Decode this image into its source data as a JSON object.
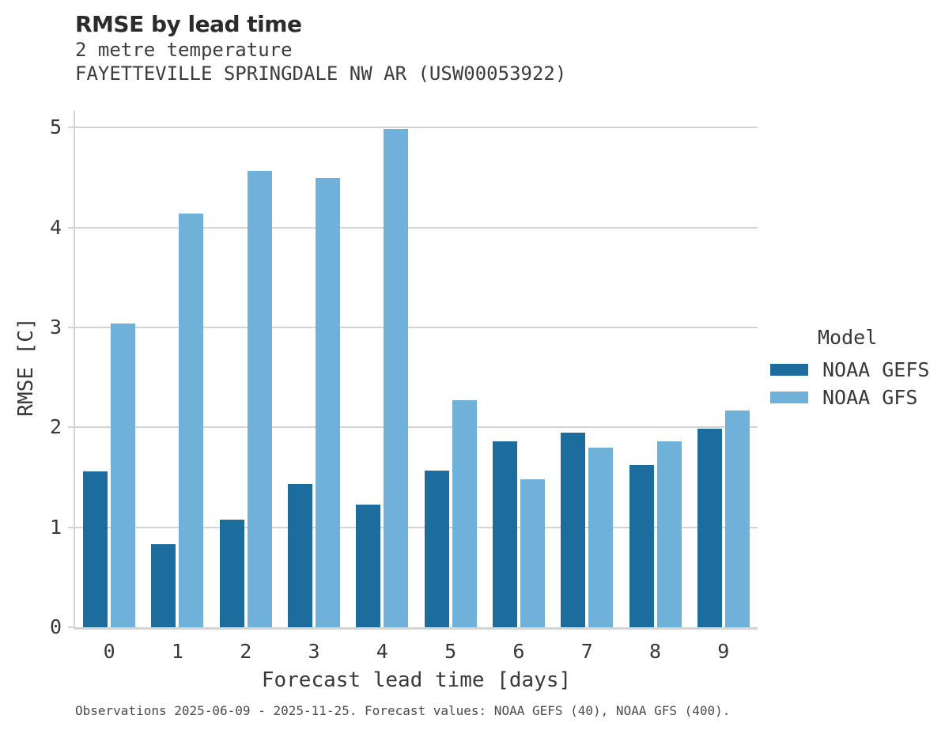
{
  "header": {
    "title": "RMSE by lead time",
    "subtitle": "2 metre temperature",
    "station": "FAYETTEVILLE SPRINGDALE NW AR (USW00053922)"
  },
  "chart_data": {
    "type": "bar",
    "title": "RMSE by lead time",
    "subtitle": "2 metre temperature",
    "station": "FAYETTEVILLE SPRINGDALE NW AR (USW00053922)",
    "xlabel": "Forecast lead time [days]",
    "ylabel": "RMSE [C]",
    "categories": [
      "0",
      "1",
      "2",
      "3",
      "4",
      "5",
      "6",
      "7",
      "8",
      "9"
    ],
    "series": [
      {
        "name": "NOAA GEFS",
        "color": "#1c6d9d",
        "values": [
          1.56,
          0.83,
          1.08,
          1.43,
          1.23,
          1.57,
          1.86,
          1.95,
          1.62,
          1.99
        ]
      },
      {
        "name": "NOAA GFS",
        "color": "#6fb1d8",
        "values": [
          3.04,
          4.14,
          4.57,
          4.5,
          4.99,
          2.27,
          1.48,
          1.8,
          1.86,
          2.17
        ]
      }
    ],
    "ylim": [
      0,
      5.17
    ],
    "yticks": [
      0,
      1,
      2,
      3,
      4,
      5
    ],
    "grid": true,
    "legend_position": "right-center"
  },
  "legend": {
    "title": "Model"
  },
  "caption": "Observations 2025-06-09 - 2025-11-25. Forecast values: NOAA GEFS (40), NOAA GFS (400).",
  "colors": {
    "grid": "#d4d4d4",
    "title_text": "#2b2b2b",
    "tick_text": "#383838",
    "caption_text": "#4b4b4b"
  }
}
